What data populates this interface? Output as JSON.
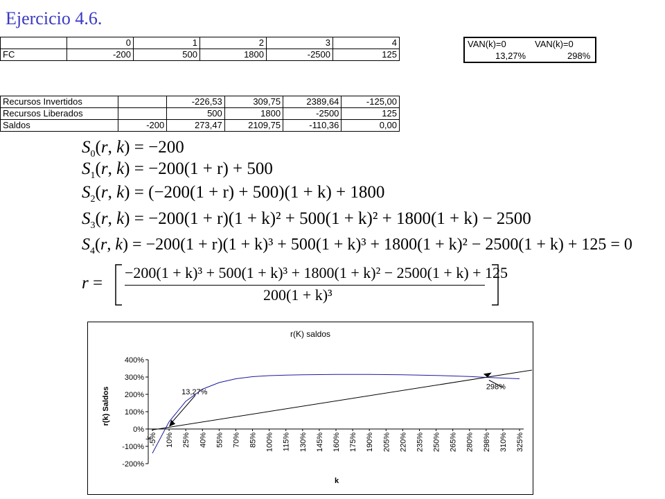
{
  "title": "Ejercicio 4.6.",
  "table1": {
    "header": [
      "",
      "0",
      "1",
      "2",
      "3",
      "4"
    ],
    "rows": [
      {
        "label": "FC",
        "values": [
          "-200",
          "500",
          "1800",
          "-2500",
          "125"
        ]
      }
    ]
  },
  "van": {
    "h1": "VAN(k)=0",
    "h2": "VAN(k)=0",
    "v1": "13,27%",
    "v2": "298%"
  },
  "table2": {
    "rows": [
      {
        "label": "Recursos Invertidos",
        "values": [
          "",
          "-226,53",
          "309,75",
          "2389,64",
          "-125,00"
        ]
      },
      {
        "label": "Recursos Liberados",
        "values": [
          "",
          "500",
          "1800",
          "-2500",
          "125"
        ]
      },
      {
        "label": "Saldos",
        "values": [
          "-200",
          "273,47",
          "2109,75",
          "-110,36",
          "0,00"
        ]
      }
    ]
  },
  "equations": {
    "s0": "= −200",
    "s1": "= −200(1 + r) + 500",
    "s2": "= (−200(1 + r) + 500)(1 + k) + 1800",
    "s3": "= −200(1 + r)(1 + k)² + 500(1 + k)² + 1800(1 + k) − 2500",
    "s4": "= −200(1 + r)(1 + k)³ + 500(1 + k)³ + 1800(1 + k)² − 2500(1 + k) + 125 = 0",
    "r_num": "−200(1 + k)³ + 500(1 + k)³ + 1800(1 + k)² − 2500(1 + k) + 125",
    "r_den": "200(1 + k)³"
  },
  "chart_data": {
    "type": "line",
    "title": "r(K) saldos",
    "xlabel": "k",
    "ylabel": "r(k) Saldos",
    "ylim": [
      -200,
      400
    ],
    "yticks": [
      "400%",
      "300%",
      "200%",
      "100%",
      "0%",
      "-100%",
      "-200%"
    ],
    "categories": [
      "-5%",
      "10%",
      "25%",
      "40%",
      "55%",
      "70%",
      "85%",
      "100%",
      "115%",
      "130%",
      "145%",
      "160%",
      "175%",
      "190%",
      "205%",
      "220%",
      "235%",
      "250%",
      "265%",
      "280%",
      "298%",
      "310%",
      "325%"
    ],
    "series": [
      {
        "values": [
          -140,
          42,
          160,
          230,
          268,
          290,
          302,
          308,
          311,
          313,
          314,
          315,
          315,
          315,
          314,
          313,
          311,
          309,
          306,
          303,
          298,
          294,
          290
        ]
      },
      {
        "values": [
          -5,
          13.27,
          27,
          41,
          55,
          69,
          83,
          97,
          111,
          125,
          139,
          153,
          167,
          181,
          195,
          209,
          223,
          237,
          251,
          265,
          298,
          310,
          325
        ]
      }
    ],
    "annotations": [
      {
        "text": "13,27%",
        "k_index": 1,
        "value": 13.27
      },
      {
        "text": "298%",
        "k_index": 20,
        "value": 298
      }
    ],
    "axis_marker": "k",
    "grid": false,
    "legend": "none"
  }
}
